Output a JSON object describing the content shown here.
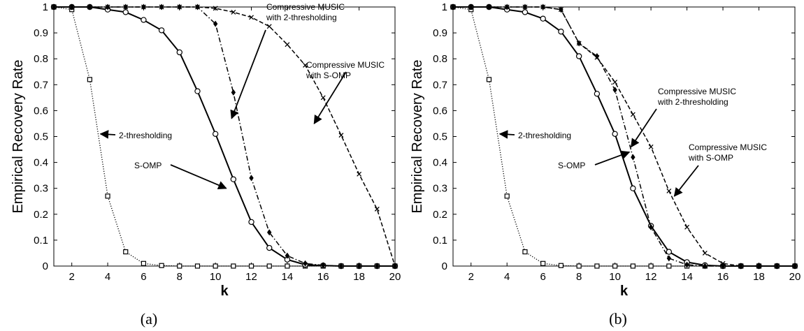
{
  "figure": {
    "chart_data": [
      {
        "type": "line",
        "caption": "(a)",
        "xlabel": "k",
        "ylabel": "Empirical Recovery Rate",
        "xlim": [
          1,
          20
        ],
        "ylim": [
          0,
          1
        ],
        "xticks": [
          2,
          4,
          6,
          8,
          10,
          12,
          14,
          16,
          18,
          20
        ],
        "yticks": [
          0,
          0.1,
          0.2,
          0.3,
          0.4,
          0.5,
          0.6,
          0.7,
          0.8,
          0.9,
          1
        ],
        "grid": false,
        "x": [
          1,
          2,
          3,
          4,
          5,
          6,
          7,
          8,
          9,
          10,
          11,
          12,
          13,
          14,
          15,
          16,
          17,
          18,
          19,
          20
        ],
        "series": [
          {
            "key": "two_thr",
            "style": "dotted",
            "marker": "square",
            "values": [
              1,
              0.99,
              0.72,
              0.27,
              0.055,
              0.01,
              0.002,
              0,
              0,
              0,
              0,
              0,
              0,
              0,
              0,
              0,
              0,
              0,
              0,
              0
            ]
          },
          {
            "key": "somp",
            "style": "solid",
            "marker": "circle",
            "values": [
              1,
              1,
              1,
              0.99,
              0.98,
              0.95,
              0.91,
              0.825,
              0.675,
              0.51,
              0.335,
              0.17,
              0.07,
              0.025,
              0.005,
              0.002,
              0,
              0,
              0,
              0
            ]
          },
          {
            "key": "cm_2thr",
            "style": "dashdot",
            "marker": "diamond",
            "values": [
              1,
              1,
              1,
              1,
              1,
              1,
              1,
              1,
              1,
              0.935,
              0.67,
              0.34,
              0.13,
              0.04,
              0.01,
              0.003,
              0,
              0,
              0,
              0
            ]
          },
          {
            "key": "cm_somp",
            "style": "dashed",
            "marker": "x",
            "values": [
              1,
              1,
              1,
              1,
              1,
              1,
              1,
              1,
              1,
              0.995,
              0.98,
              0.96,
              0.925,
              0.855,
              0.775,
              0.65,
              0.505,
              0.355,
              0.22,
              0
            ]
          }
        ],
        "annotations": [
          {
            "lines": [
              "2-thresholding"
            ],
            "point": [
              3.6,
              0.51
            ]
          },
          {
            "lines": [
              "S-OMP"
            ],
            "point": [
              10.6,
              0.3
            ]
          },
          {
            "lines": [
              "Compressive MUSIC",
              "with 2-thresholding"
            ],
            "point": [
              10.9,
              0.57
            ]
          },
          {
            "lines": [
              "Compressive MUSIC",
              "with S-OMP"
            ],
            "point": [
              15.5,
              0.55
            ]
          }
        ]
      },
      {
        "type": "line",
        "caption": "(b)",
        "xlabel": "k",
        "ylabel": "Empirical Recovery Rate",
        "xlim": [
          1,
          20
        ],
        "ylim": [
          0,
          1
        ],
        "xticks": [
          2,
          4,
          6,
          8,
          10,
          12,
          14,
          16,
          18,
          20
        ],
        "yticks": [
          0,
          0.1,
          0.2,
          0.3,
          0.4,
          0.5,
          0.6,
          0.7,
          0.8,
          0.9,
          1
        ],
        "grid": false,
        "x": [
          1,
          2,
          3,
          4,
          5,
          6,
          7,
          8,
          9,
          10,
          11,
          12,
          13,
          14,
          15,
          16,
          17,
          18,
          19,
          20
        ],
        "series": [
          {
            "key": "two_thr",
            "style": "dotted",
            "marker": "square",
            "values": [
              1,
              0.99,
              0.72,
              0.27,
              0.055,
              0.01,
              0.002,
              0,
              0,
              0,
              0,
              0,
              0,
              0,
              0,
              0,
              0,
              0,
              0,
              0
            ]
          },
          {
            "key": "somp",
            "style": "solid",
            "marker": "circle",
            "values": [
              1,
              1,
              1,
              0.99,
              0.98,
              0.955,
              0.905,
              0.81,
              0.665,
              0.51,
              0.3,
              0.155,
              0.055,
              0.015,
              0.003,
              0,
              0,
              0,
              0,
              0
            ]
          },
          {
            "key": "cm_2thr",
            "style": "dashdot",
            "marker": "diamond",
            "values": [
              1,
              1,
              1,
              1,
              1,
              1,
              0.99,
              0.86,
              0.81,
              0.68,
              0.42,
              0.15,
              0.03,
              0.005,
              0,
              0,
              0,
              0,
              0,
              0
            ]
          },
          {
            "key": "cm_somp",
            "style": "dashed",
            "marker": "x",
            "values": [
              1,
              1,
              1,
              1,
              1,
              1,
              0.99,
              0.86,
              0.805,
              0.71,
              0.585,
              0.46,
              0.29,
              0.15,
              0.05,
              0.01,
              0,
              0,
              0,
              0
            ]
          }
        ],
        "annotations": [
          {
            "lines": [
              "2-thresholding"
            ],
            "point": [
              3.6,
              0.51
            ]
          },
          {
            "lines": [
              "S-OMP"
            ],
            "point": [
              10.8,
              0.44
            ]
          },
          {
            "lines": [
              "Compressive MUSIC",
              "with 2-thresholding"
            ],
            "point": [
              10.9,
              0.46
            ]
          },
          {
            "lines": [
              "Compressive MUSIC",
              "with S-OMP"
            ],
            "point": [
              13.3,
              0.27
            ]
          }
        ]
      }
    ]
  }
}
